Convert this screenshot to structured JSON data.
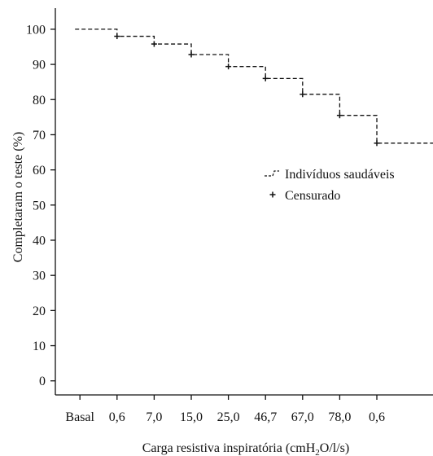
{
  "chart_data": {
    "type": "line",
    "xlabel": "Carga resistiva inspiratória (cmH",
    "xlabel_sub": "2",
    "xlabel_tail": "O/l/s)",
    "ylabel": "Completaram o teste (%)",
    "categories": [
      "Basal",
      "0,6",
      "7,0",
      "15,0",
      "25,0",
      "46,7",
      "67,0",
      "78,0",
      "0,6"
    ],
    "yticks": [
      0,
      10,
      20,
      30,
      40,
      50,
      60,
      70,
      80,
      90,
      100
    ],
    "ylim": [
      -4,
      106
    ],
    "series": [
      {
        "name": "Indivíduos saudáveis",
        "line_style": "dashed-step",
        "color": "#111111",
        "values": [
          100,
          98,
          95.8,
          92.8,
          89.4,
          86,
          81.5,
          75.5,
          67.6
        ]
      }
    ],
    "censored": [
      {
        "x_index": 1,
        "y": 98
      },
      {
        "x_index": 2,
        "y": 95.8
      },
      {
        "x_index": 3,
        "y": 92.8
      },
      {
        "x_index": 4,
        "y": 89.4
      },
      {
        "x_index": 5,
        "y": 86
      },
      {
        "x_index": 6,
        "y": 81.5
      },
      {
        "x_index": 7,
        "y": 75.5
      },
      {
        "x_index": 8,
        "y": 67.6
      }
    ],
    "legend": {
      "position": "right",
      "items": [
        {
          "label": "Indivíduos saudáveis",
          "marker": "dashed-line"
        },
        {
          "label": "Censurado",
          "marker": "plus"
        }
      ]
    },
    "grid": false
  }
}
